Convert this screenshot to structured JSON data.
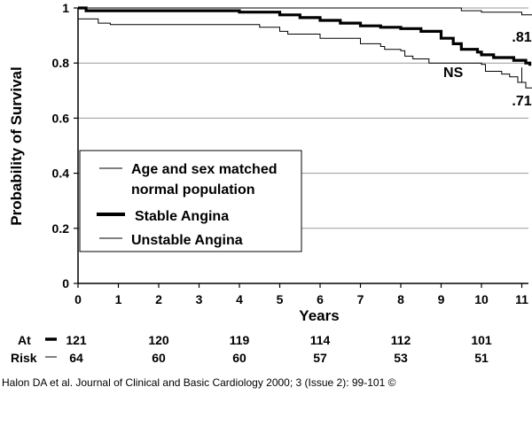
{
  "chart_data": {
    "type": "line",
    "title": "",
    "xlabel": "Years",
    "ylabel": "Probability of Survival",
    "xlim": [
      0,
      11.3
    ],
    "ylim": [
      0,
      1
    ],
    "x_ticks": [
      "0",
      "1",
      "2",
      "3",
      "4",
      "5",
      "6",
      "7",
      "8",
      "9",
      "10",
      "11"
    ],
    "y_ticks": [
      "0",
      "0.2",
      "0.4",
      "0.6",
      "0.8",
      "1"
    ],
    "grid_y": true,
    "legend_position": "lower-left",
    "series": [
      {
        "name": "Age and sex matched normal population",
        "style": "thin",
        "points": [
          [
            0,
            1.0
          ],
          [
            9.3,
            1.0
          ],
          [
            9.5,
            0.99
          ],
          [
            10.0,
            0.985
          ],
          [
            11.0,
            0.975
          ],
          [
            11.3,
            0.97
          ]
        ]
      },
      {
        "name": "Stable Angina",
        "style": "thick",
        "points": [
          [
            0,
            1.0
          ],
          [
            0.2,
            0.99
          ],
          [
            3.9,
            0.99
          ],
          [
            4.0,
            0.985
          ],
          [
            4.8,
            0.985
          ],
          [
            5.0,
            0.975
          ],
          [
            5.5,
            0.965
          ],
          [
            6.0,
            0.955
          ],
          [
            6.5,
            0.945
          ],
          [
            7.0,
            0.935
          ],
          [
            7.5,
            0.93
          ],
          [
            8.0,
            0.925
          ],
          [
            8.5,
            0.915
          ],
          [
            9.0,
            0.89
          ],
          [
            9.3,
            0.87
          ],
          [
            9.5,
            0.85
          ],
          [
            9.7,
            0.85
          ],
          [
            9.9,
            0.84
          ],
          [
            10.0,
            0.83
          ],
          [
            10.3,
            0.82
          ],
          [
            10.8,
            0.81
          ],
          [
            11.0,
            0.81
          ],
          [
            11.1,
            0.8
          ],
          [
            11.2,
            0.79
          ]
        ]
      },
      {
        "name": "Unstable Angina",
        "style": "thin",
        "points": [
          [
            0,
            0.96
          ],
          [
            0.3,
            0.96
          ],
          [
            0.5,
            0.945
          ],
          [
            0.8,
            0.94
          ],
          [
            4.2,
            0.94
          ],
          [
            4.5,
            0.93
          ],
          [
            5.0,
            0.915
          ],
          [
            5.2,
            0.905
          ],
          [
            5.6,
            0.905
          ],
          [
            6.0,
            0.89
          ],
          [
            6.6,
            0.89
          ],
          [
            7.0,
            0.87
          ],
          [
            7.5,
            0.86
          ],
          [
            7.6,
            0.85
          ],
          [
            8.0,
            0.845
          ],
          [
            8.1,
            0.825
          ],
          [
            8.3,
            0.815
          ],
          [
            8.7,
            0.8
          ],
          [
            9.0,
            0.8
          ],
          [
            9.2,
            0.8
          ],
          [
            9.6,
            0.8
          ],
          [
            10.0,
            0.795
          ],
          [
            10.1,
            0.77
          ],
          [
            10.5,
            0.76
          ],
          [
            10.7,
            0.75
          ],
          [
            10.9,
            0.73
          ],
          [
            11.1,
            0.71
          ],
          [
            11.3,
            0.71
          ]
        ]
      }
    ],
    "annotations": [
      {
        "text": ".81",
        "x": 11.0,
        "y": 0.81
      },
      {
        "text": "NS",
        "x": 9.3,
        "y": 0.75
      },
      {
        "text": ".71",
        "x": 11.0,
        "y": 0.71
      }
    ],
    "at_risk": {
      "label_line1": "At",
      "label_line2": "Risk",
      "years": [
        0,
        2,
        4,
        6,
        8,
        10
      ],
      "stable": [
        "121",
        "120",
        "119",
        "114",
        "112",
        "101"
      ],
      "unstable": [
        "64",
        "60",
        "60",
        "57",
        "53",
        "51"
      ]
    }
  },
  "legend": {
    "item1_line1": "Age and sex matched",
    "item1_line2": "normal population",
    "item2": "Stable Angina",
    "item3": "Unstable Angina"
  },
  "caption": "Halon DA et al. Journal of Clinical and Basic Cardiology 2000; 3 (Issue 2): 99-101 ©"
}
